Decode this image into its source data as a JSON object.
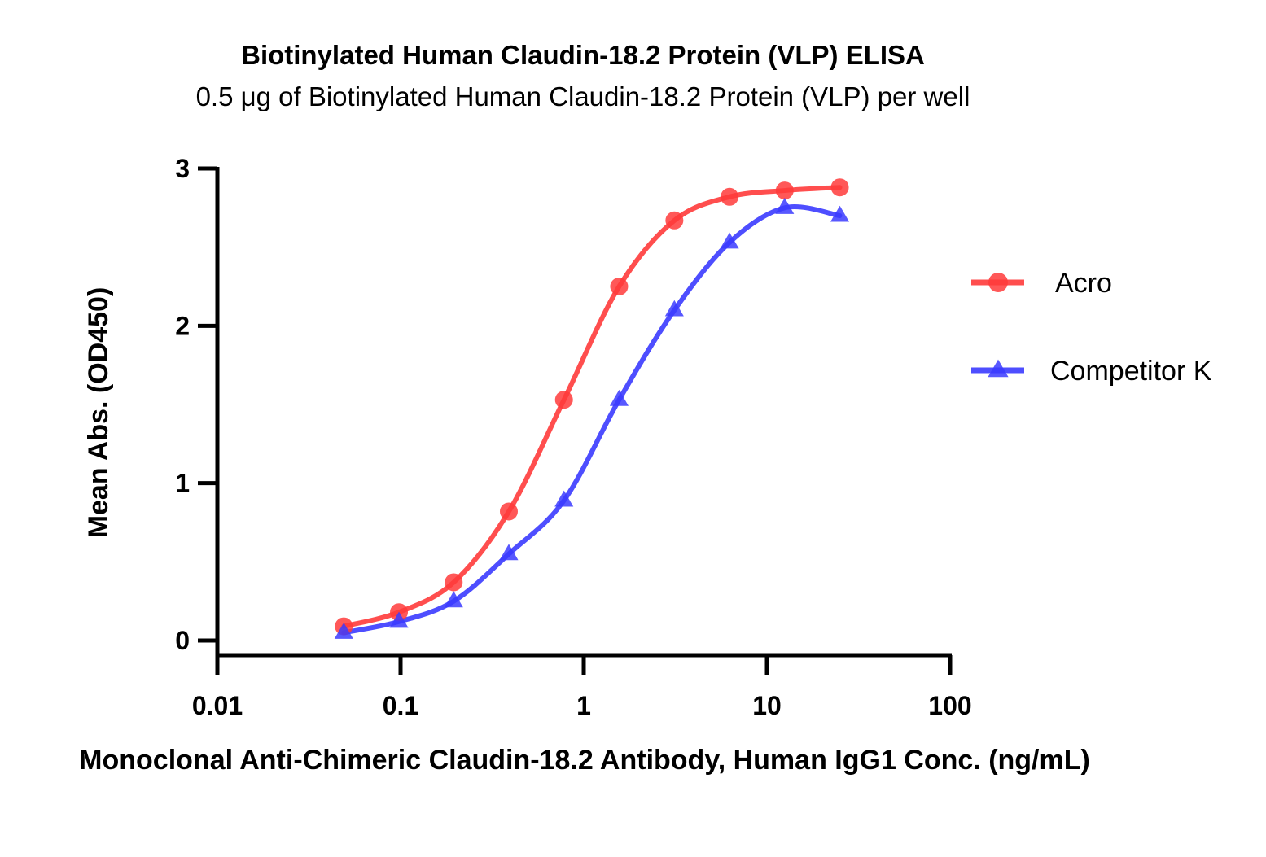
{
  "chart_data": {
    "type": "scatter",
    "title": "Biotinylated Human Claudin-18.2 Protein (VLP) ELISA",
    "subtitle": "0.5 μg of Biotinylated Human Claudin-18.2 Protein (VLP) per well",
    "xlabel": "Monoclonal Anti-Chimeric Claudin-18.2 Antibody, Human IgG1 Conc. (ng/mL)",
    "ylabel": "Mean Abs. (OD450)",
    "xscale": "log",
    "xlim": [
      0.01,
      100
    ],
    "ylim": [
      0,
      3
    ],
    "xticks": [
      "0.01",
      "0.1",
      "1",
      "10",
      "100"
    ],
    "xtick_values": [
      0.01,
      0.1,
      1,
      10,
      100
    ],
    "yticks": [
      "0",
      "1",
      "2",
      "3"
    ],
    "ytick_values": [
      0,
      1,
      2,
      3
    ],
    "grid": false,
    "legend_position": "right",
    "series": [
      {
        "name": "Acro",
        "marker": "circle",
        "color": "#ff3b3b",
        "x": [
          0.049,
          0.098,
          0.195,
          0.39,
          0.78,
          1.56,
          3.125,
          6.25,
          12.5,
          25
        ],
        "y": [
          0.09,
          0.18,
          0.37,
          0.82,
          1.53,
          2.25,
          2.67,
          2.82,
          2.86,
          2.88
        ]
      },
      {
        "name": "Competitor K",
        "marker": "triangle",
        "color": "#3b3bff",
        "x": [
          0.049,
          0.098,
          0.195,
          0.39,
          0.78,
          1.56,
          3.125,
          6.25,
          12.5,
          25
        ],
        "y": [
          0.05,
          0.12,
          0.25,
          0.55,
          0.89,
          1.53,
          2.1,
          2.53,
          2.75,
          2.7
        ]
      }
    ]
  }
}
